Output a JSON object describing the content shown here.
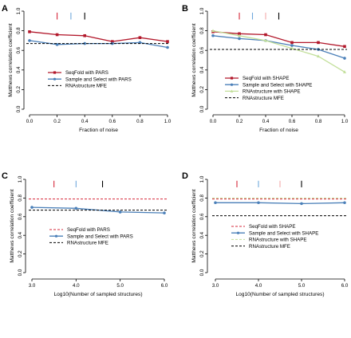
{
  "chart_data": [
    {
      "panel": "A",
      "type": "line",
      "xlabel": "Fraction of noise",
      "ylabel": "Matthews correlation coefficient",
      "xlim": [
        0,
        1
      ],
      "ylim": [
        0,
        1
      ],
      "xticks": [
        0.0,
        0.2,
        0.4,
        0.6,
        0.8,
        1.0
      ],
      "xtick_labels": [
        "0.0",
        "0.2",
        "0.4",
        "0.6",
        "0.8",
        "1.0"
      ],
      "yticks": [
        0,
        0.2,
        0.4,
        0.6,
        0.8,
        1
      ],
      "ytick_labels": [
        "0.0",
        "0.2",
        "0.4",
        "0.6",
        "0.8",
        "1.0"
      ],
      "series": [
        {
          "name": "SeqFold with PARS",
          "kind": "line",
          "color": "#b2182b",
          "marker": "square",
          "x": [
            0.0,
            0.2,
            0.4,
            0.6,
            0.8,
            1.0
          ],
          "y": [
            0.79,
            0.76,
            0.75,
            0.69,
            0.73,
            0.69
          ]
        },
        {
          "name": "Sample and Select with PARS",
          "kind": "line",
          "color": "#4a7fb8",
          "marker": "circle",
          "x": [
            0.0,
            0.2,
            0.4,
            0.6,
            0.8,
            1.0
          ],
          "y": [
            0.7,
            0.66,
            0.67,
            0.67,
            0.68,
            0.63
          ]
        },
        {
          "name": "RNAstructure MFE",
          "kind": "hline",
          "color": "#000000",
          "y": 0.67
        }
      ],
      "markers": [
        {
          "x": 0.2,
          "color": "#d6273a"
        },
        {
          "x": 0.3,
          "color": "#6fa8dc"
        },
        {
          "x": 0.4,
          "color": "#000000"
        }
      ]
    },
    {
      "panel": "B",
      "type": "line",
      "xlabel": "Fraction of noise",
      "ylabel": "Matthews correlation coefficient",
      "xlim": [
        0,
        1
      ],
      "ylim": [
        0,
        1
      ],
      "xticks": [
        0.0,
        0.2,
        0.4,
        0.6,
        0.8,
        1.0
      ],
      "xtick_labels": [
        "0.0",
        "0.2",
        "0.4",
        "0.6",
        "0.8",
        "1.0"
      ],
      "yticks": [
        0,
        0.2,
        0.4,
        0.6,
        0.8,
        1
      ],
      "ytick_labels": [
        "0.0",
        "0.2",
        "0.4",
        "0.6",
        "0.8",
        "1.0"
      ],
      "series": [
        {
          "name": "SeqFold with SHAPE",
          "kind": "line",
          "color": "#b2182b",
          "marker": "square",
          "x": [
            0.0,
            0.2,
            0.4,
            0.6,
            0.8,
            1.0
          ],
          "y": [
            0.79,
            0.77,
            0.76,
            0.68,
            0.68,
            0.64
          ]
        },
        {
          "name": "Sample and Select with SHAPE",
          "kind": "line",
          "color": "#4a7fb8",
          "marker": "circle",
          "x": [
            0.0,
            0.2,
            0.4,
            0.6,
            0.8,
            1.0
          ],
          "y": [
            0.75,
            0.72,
            0.7,
            0.65,
            0.61,
            0.52
          ]
        },
        {
          "name": "RNAstructure with SHAPE",
          "kind": "line",
          "color": "#c2df9a",
          "marker": "triangle",
          "x": [
            0.0,
            0.2,
            0.4,
            0.6,
            0.8,
            1.0
          ],
          "y": [
            0.8,
            0.75,
            0.7,
            0.62,
            0.54,
            0.38
          ]
        },
        {
          "name": "RNAstructure MFE",
          "kind": "hline",
          "color": "#000000",
          "y": 0.61
        }
      ],
      "markers": [
        {
          "x": 0.2,
          "color": "#d6273a"
        },
        {
          "x": 0.3,
          "color": "#6fa8dc"
        },
        {
          "x": 0.4,
          "color": "#f4a9a8"
        },
        {
          "x": 0.5,
          "color": "#000000"
        }
      ]
    },
    {
      "panel": "C",
      "type": "line",
      "xlabel": "Log10(Number of sampled structures)",
      "ylabel": "Matthews correlation coefficient",
      "xlim": [
        3,
        6
      ],
      "ylim": [
        0,
        1
      ],
      "xticks": [
        3,
        4,
        5,
        6
      ],
      "xtick_labels": [
        "3.0",
        "4.0",
        "5.0",
        "6.0"
      ],
      "yticks": [
        0,
        0.2,
        0.4,
        0.6,
        0.8,
        1
      ],
      "ytick_labels": [
        "0.0",
        "0.2",
        "0.4",
        "0.6",
        "0.8",
        "1.0"
      ],
      "series": [
        {
          "name": "SeqFold with PARS",
          "kind": "hline",
          "color": "#d6273a",
          "y": 0.79
        },
        {
          "name": "Sample and Select with PARS",
          "kind": "line",
          "color": "#4a7fb8",
          "marker": "circle",
          "x": [
            3,
            4,
            5,
            6
          ],
          "y": [
            0.7,
            0.69,
            0.65,
            0.64
          ]
        },
        {
          "name": "RNAstructure MFE",
          "kind": "hline",
          "color": "#000000",
          "y": 0.67
        }
      ],
      "markers": [
        {
          "x": 3.5,
          "color": "#d6273a"
        },
        {
          "x": 4.0,
          "color": "#6fa8dc"
        },
        {
          "x": 4.6,
          "color": "#000000"
        }
      ]
    },
    {
      "panel": "D",
      "type": "line",
      "xlabel": "Log10(Number of sampled structures)",
      "ylabel": "Matthews correlation coefficient",
      "xlim": [
        3,
        6
      ],
      "ylim": [
        0,
        1
      ],
      "xticks": [
        3,
        4,
        5,
        6
      ],
      "xtick_labels": [
        "3.0",
        "4.0",
        "5.0",
        "6.0"
      ],
      "yticks": [
        0,
        0.2,
        0.4,
        0.6,
        0.8,
        1
      ],
      "ytick_labels": [
        "0.0",
        "0.2",
        "0.4",
        "0.6",
        "0.8",
        "1.0"
      ],
      "series": [
        {
          "name": "SeqFold with SHAPE",
          "kind": "hline",
          "color": "#d6273a",
          "y": 0.79
        },
        {
          "name": "Sample and Select with SHAPE",
          "kind": "line",
          "color": "#4a7fb8",
          "marker": "circle",
          "x": [
            3,
            4,
            5,
            6
          ],
          "y": [
            0.75,
            0.75,
            0.74,
            0.75
          ]
        },
        {
          "name": "RNAstructure with SHAPE",
          "kind": "hline",
          "color": "#c2df9a",
          "y": 0.8
        },
        {
          "name": "RNAstructure MFE",
          "kind": "hline",
          "color": "#000000",
          "y": 0.61
        }
      ],
      "markers": [
        {
          "x": 3.5,
          "color": "#d6273a"
        },
        {
          "x": 4.0,
          "color": "#6fa8dc"
        },
        {
          "x": 4.5,
          "color": "#f4a9a8"
        },
        {
          "x": 5.0,
          "color": "#000000"
        }
      ]
    }
  ]
}
